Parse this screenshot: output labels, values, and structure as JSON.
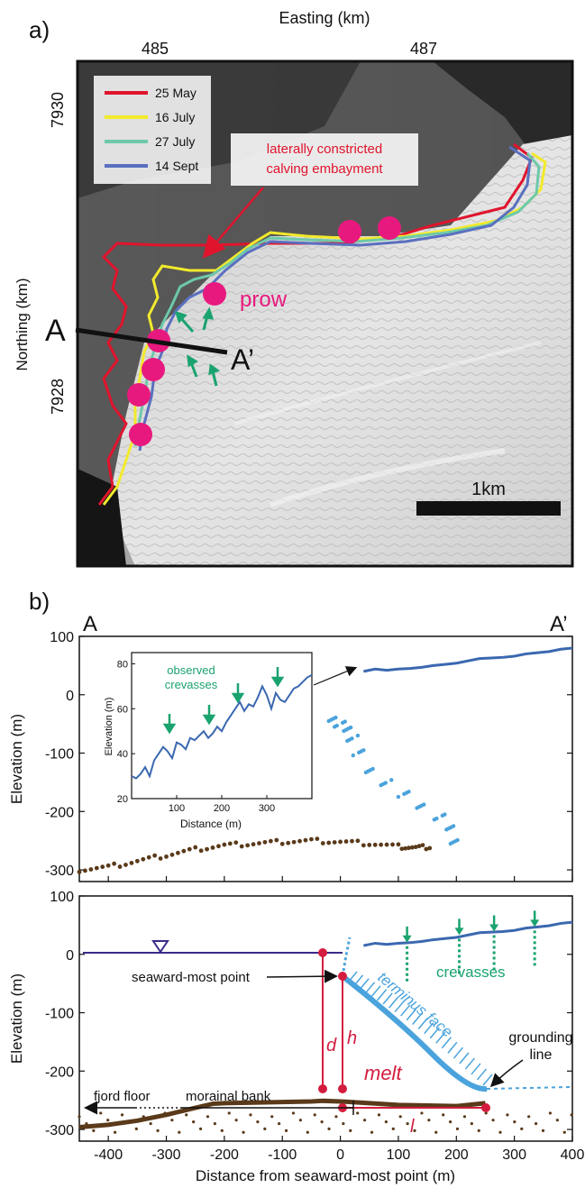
{
  "panel_a": {
    "label": "a)",
    "xlabel": "Easting (km)",
    "ylabel": "Northing (km)",
    "xticks": [
      "485",
      "487"
    ],
    "yticks": [
      "7930",
      "7928"
    ],
    "legend": [
      {
        "label": "25 May",
        "color": "#e0142d"
      },
      {
        "label": "16 July",
        "color": "#f2ea2c"
      },
      {
        "label": "27 July",
        "color": "#6dc9a9"
      },
      {
        "label": "14 Sept",
        "color": "#5a6fbf"
      }
    ],
    "annotation_embayment": [
      "laterally constricted",
      "calving embayment"
    ],
    "annotation_prow": "prow",
    "section_start": "A",
    "section_end": "A’",
    "scalebar": "1km",
    "dot_color": "#e8197e",
    "arrow_color": "#1aa36f"
  },
  "panel_b": {
    "label": "b)",
    "endpoint_left": "A",
    "endpoint_right": "A’",
    "inset": {
      "title": [
        "observed",
        "crevasses"
      ],
      "xlabel": "Distance (m)",
      "ylabel": "Elevation (m)",
      "xticks": [
        "100",
        "200",
        "300"
      ],
      "yticks": [
        "20",
        "40",
        "60",
        "80"
      ]
    },
    "top_ylabel": "Elevation (m)",
    "top_yticks": [
      "100",
      "0",
      "-100",
      "-200",
      "-300"
    ],
    "bottom_ylabel": "Elevation (m)",
    "bottom_yticks": [
      "100",
      "0",
      "-100",
      "-200",
      "-300"
    ],
    "xlabel": "Distance from seaward-most point (m)",
    "xticks": [
      "-400",
      "-300",
      "-200",
      "-100",
      "0",
      "100",
      "200",
      "300",
      "400"
    ],
    "labels": {
      "seaward_point": "seaward-most point",
      "crevasses": "crevasses",
      "terminus_face": "terminus face",
      "grounding_line": [
        "grounding",
        "line"
      ],
      "melt": "melt",
      "d": "d",
      "h": "h",
      "l": "l",
      "fjord_floor": "fjord floor",
      "morainal_bank": "morainal bank"
    },
    "colors": {
      "surface": "#3b68b0",
      "face": "#4aa3dc",
      "bed": "#5a3a1a",
      "water": "#3b2a8a",
      "geometry": "#d41d3e",
      "crevasse": "#1aa36f"
    }
  },
  "chart_data": [
    {
      "type": "scatter",
      "title": "",
      "xlabel": "",
      "ylabel": "Elevation (m)",
      "xlim": [
        -450,
        400
      ],
      "ylim": [
        -320,
        100
      ],
      "series": [
        {
          "values": [
            [
              40,
              40
            ],
            [
              60,
              44
            ],
            [
              80,
              42
            ],
            [
              100,
              44
            ],
            [
              120,
              45
            ],
            [
              140,
              47
            ],
            [
              160,
              50
            ],
            [
              180,
              52
            ],
            [
              200,
              54
            ],
            [
              220,
              58
            ],
            [
              240,
              62
            ],
            [
              260,
              63
            ],
            [
              280,
              64
            ],
            [
              300,
              66
            ],
            [
              320,
              70
            ],
            [
              340,
              72
            ],
            [
              360,
              74
            ],
            [
              380,
              78
            ],
            [
              400,
              80
            ]
          ]
        },
        {
          "values": [
            [
              -10,
              -40
            ],
            [
              0,
              -50
            ],
            [
              10,
              -60
            ],
            [
              20,
              -75
            ],
            [
              30,
              -100
            ],
            [
              50,
              -130
            ],
            [
              80,
              -150
            ],
            [
              110,
              -170
            ],
            [
              140,
              -190
            ],
            [
              170,
              -210
            ],
            [
              185,
              -230
            ],
            [
              200,
              -250
            ]
          ]
        },
        {
          "values": [
            [
              -450,
              -300
            ],
            [
              -400,
              -295
            ],
            [
              -350,
              -285
            ],
            [
              -300,
              -275
            ],
            [
              -250,
              -265
            ],
            [
              -200,
              -258
            ],
            [
              -150,
              -255
            ],
            [
              -100,
              -252
            ],
            [
              -50,
              -250
            ],
            [
              0,
              -252
            ],
            [
              50,
              -255
            ],
            [
              100,
              -260
            ],
            [
              130,
              -262
            ],
            [
              160,
              -260
            ]
          ]
        }
      ]
    },
    {
      "type": "line",
      "title": "",
      "xlabel": "Distance (m)",
      "ylabel": "Elevation (m)",
      "xlim": [
        0,
        400
      ],
      "ylim": [
        20,
        85
      ],
      "x": [
        0,
        10,
        20,
        30,
        40,
        50,
        60,
        70,
        80,
        90,
        100,
        110,
        120,
        130,
        140,
        150,
        160,
        170,
        180,
        190,
        200,
        210,
        220,
        230,
        240,
        250,
        260,
        270,
        280,
        290,
        300,
        310,
        320,
        330,
        340,
        350,
        360,
        370,
        380,
        390,
        400
      ],
      "values": [
        30,
        29,
        31,
        34,
        30,
        37,
        40,
        43,
        41,
        38,
        45,
        44,
        42,
        47,
        46,
        48,
        50,
        47,
        49,
        52,
        50,
        54,
        57,
        60,
        63,
        59,
        62,
        61,
        65,
        70,
        66,
        60,
        67,
        64,
        63,
        66,
        69,
        70,
        72,
        74,
        75
      ]
    },
    {
      "type": "line",
      "title": "",
      "xlabel": "Distance from seaward-most point (m)",
      "ylabel": "Elevation (m)",
      "xlim": [
        -450,
        400
      ],
      "ylim": [
        -320,
        100
      ],
      "x": [
        -450,
        -400,
        -350,
        -300,
        -250,
        -220,
        -200,
        -150,
        -100,
        -50,
        -30,
        0,
        50,
        100,
        150,
        200,
        250
      ],
      "values": [
        -296,
        -292,
        -285,
        -275,
        -263,
        -256,
        -255,
        -254,
        -253,
        -252,
        -251,
        -252,
        -255,
        -258,
        -259,
        -260,
        -255
      ]
    }
  ]
}
